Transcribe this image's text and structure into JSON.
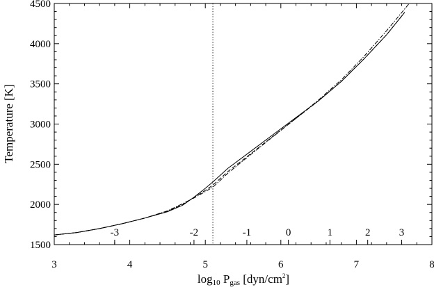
{
  "chart_data": {
    "type": "line",
    "xlabel_main": "log",
    "xlabel_sub1": "10",
    "xlabel_p": " P",
    "xlabel_sub2": "gas",
    "xlabel_unit": " [dyn/cm",
    "xlabel_sup": "2",
    "xlabel_close": "]",
    "ylabel": "Temperature [K]",
    "xlim": [
      3,
      8
    ],
    "ylim": [
      1500,
      4500
    ],
    "x_ticks": [
      "3",
      "4",
      "5",
      "6",
      "7",
      "8"
    ],
    "y_ticks": [
      "1500",
      "2000",
      "2500",
      "3000",
      "3500",
      "4000",
      "4500"
    ],
    "vertical_line_x": 5.1,
    "secondary_scale": [
      {
        "label": "-3",
        "x": 3.8
      },
      {
        "label": "-2",
        "x": 4.85
      },
      {
        "label": "-1",
        "x": 5.55
      },
      {
        "label": "0",
        "x": 6.1
      },
      {
        "label": "1",
        "x": 6.65
      },
      {
        "label": "2",
        "x": 7.15
      },
      {
        "label": "3",
        "x": 7.6
      }
    ],
    "series": [
      {
        "style": "solid",
        "x": [
          3.0,
          3.3,
          3.6,
          3.9,
          4.2,
          4.5,
          4.7,
          4.85,
          5.0,
          5.1,
          5.3,
          5.6,
          5.9,
          6.2,
          6.5,
          6.8,
          7.1,
          7.4,
          7.64
        ],
        "y": [
          1620,
          1650,
          1700,
          1760,
          1830,
          1910,
          1990,
          2090,
          2200,
          2280,
          2450,
          2660,
          2870,
          3080,
          3290,
          3530,
          3810,
          4110,
          4390
        ]
      },
      {
        "style": "dashed",
        "x": [
          3.0,
          3.3,
          3.6,
          3.9,
          4.2,
          4.5,
          4.7,
          4.85,
          5.0,
          5.1,
          5.3,
          5.6,
          5.9,
          6.2,
          6.5,
          6.8,
          7.1,
          7.4,
          7.64
        ],
        "y": [
          1620,
          1650,
          1700,
          1760,
          1830,
          1915,
          2000,
          2085,
          2175,
          2240,
          2410,
          2630,
          2850,
          3070,
          3290,
          3530,
          3810,
          4110,
          4390
        ]
      },
      {
        "style": "dashdot",
        "x": [
          3.0,
          3.3,
          3.6,
          3.9,
          4.2,
          4.5,
          4.7,
          4.85,
          5.0,
          5.1,
          5.3,
          5.6,
          5.9,
          6.2,
          6.5,
          6.8,
          7.1,
          7.4,
          7.7
        ],
        "y": [
          1620,
          1650,
          1700,
          1760,
          1830,
          1920,
          2010,
          2080,
          2160,
          2215,
          2390,
          2620,
          2845,
          3070,
          3300,
          3550,
          3840,
          4160,
          4500
        ]
      }
    ]
  }
}
